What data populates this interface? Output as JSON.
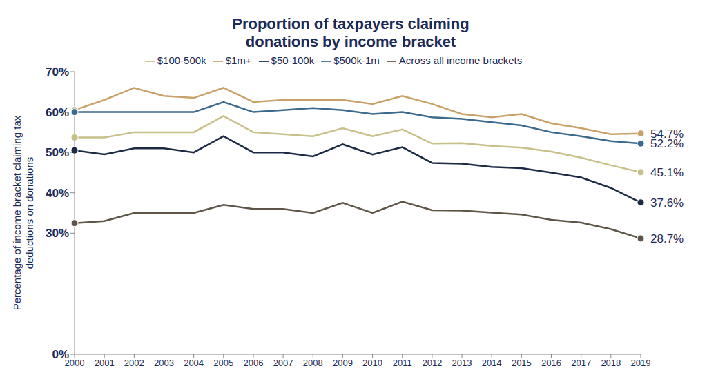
{
  "chart_data": {
    "type": "line",
    "title": "Proportion of taxpayers claiming donations by income bracket",
    "y_label": "Percentage of income bracket claiming tax deductions on donations",
    "categories": [
      "2000",
      "2001",
      "2002",
      "2003",
      "2004",
      "2005",
      "2006",
      "2007",
      "2008",
      "2009",
      "2010",
      "2011",
      "2012",
      "2013",
      "2014",
      "2015",
      "2016",
      "2017",
      "2018",
      "2019"
    ],
    "series": [
      {
        "name": "$1m+",
        "color": "#c9a26a",
        "marker": "endpoints",
        "values": [
          60.5,
          63,
          66,
          64,
          63.5,
          66,
          62.5,
          63,
          63,
          63,
          62,
          64,
          62,
          59.5,
          58.7,
          59.5,
          57.2,
          56,
          54.5,
          54.7
        ],
        "value_labels": [
          null,
          null,
          null,
          null,
          null,
          null,
          null,
          null,
          null,
          null,
          null,
          null,
          null,
          null,
          null,
          null,
          null,
          null,
          null,
          "54.7%"
        ]
      },
      {
        "name": "$500k-1m",
        "color": "#3b6a8c",
        "marker": "endpoints",
        "values": [
          60,
          60,
          60,
          60,
          60,
          62.5,
          60,
          60.5,
          61,
          60.5,
          59.5,
          60,
          58.7,
          58.3,
          57.5,
          56.7,
          55,
          54,
          52.8,
          52.2
        ],
        "value_labels": [
          null,
          null,
          null,
          null,
          null,
          null,
          null,
          null,
          null,
          null,
          null,
          null,
          null,
          null,
          null,
          null,
          null,
          null,
          null,
          "52.2%"
        ]
      },
      {
        "name": "$100-500k",
        "color": "#c7c08a",
        "marker": "endpoints",
        "values": [
          53.7,
          53.7,
          55,
          55,
          55,
          59,
          55,
          54.5,
          54,
          56,
          54,
          55.7,
          52.2,
          52.3,
          51.6,
          51.2,
          50.2,
          48.7,
          46.8,
          45.1
        ],
        "value_labels": [
          null,
          null,
          null,
          null,
          null,
          null,
          null,
          null,
          null,
          null,
          null,
          null,
          null,
          null,
          null,
          null,
          null,
          null,
          null,
          "45.1%"
        ]
      },
      {
        "name": "$50-100k",
        "color": "#1c2a44",
        "marker": "endpoints",
        "values": [
          50.5,
          49.5,
          51,
          51,
          50,
          54,
          50,
          50,
          49,
          52,
          49.5,
          51.3,
          47.4,
          47.2,
          46.4,
          46.1,
          45,
          43.8,
          41.2,
          37.6
        ],
        "value_labels": [
          null,
          null,
          null,
          null,
          null,
          null,
          null,
          null,
          null,
          null,
          null,
          null,
          null,
          null,
          null,
          null,
          null,
          null,
          null,
          "37.6%"
        ]
      },
      {
        "name": "Across all income brackets",
        "color": "#5e5548",
        "marker": "endpoints",
        "values": [
          32.5,
          33,
          35,
          35,
          35,
          37,
          36,
          36,
          35,
          37.5,
          35,
          37.8,
          35.7,
          35.6,
          35.1,
          34.6,
          33.3,
          32.6,
          31,
          28.7
        ],
        "value_labels": [
          null,
          null,
          null,
          null,
          null,
          null,
          null,
          null,
          null,
          null,
          null,
          null,
          null,
          null,
          null,
          null,
          null,
          null,
          null,
          "28.7%"
        ]
      }
    ],
    "ylim": [
      0,
      70
    ],
    "yticks": [
      {
        "value": 0,
        "label": "0%"
      },
      {
        "value": 30,
        "label": "30%"
      },
      {
        "value": 40,
        "label": "40%"
      },
      {
        "value": 50,
        "label": "50%"
      },
      {
        "value": 60,
        "label": "60%"
      },
      {
        "value": 70,
        "label": "70%"
      }
    ],
    "grid": false,
    "legend": "top"
  }
}
